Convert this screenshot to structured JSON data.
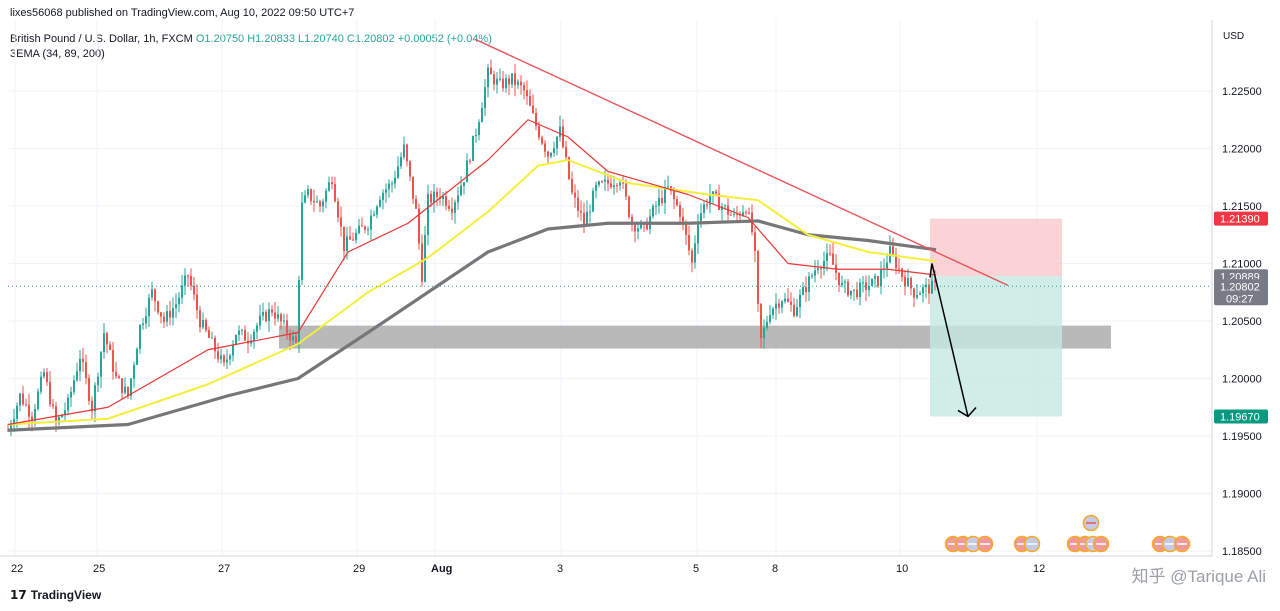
{
  "header": {
    "published": "lixes56068 published on TradingView.com, Aug 10, 2022 09:50 UTC+7"
  },
  "legend": {
    "symbol": "British Pound / U.S. Dollar, 1h, FXCM",
    "ohlc": "O1.20750 H1.20833 L1.20740 C1.20802 +0.00052 (+0.04%)",
    "indicator": "3EMA (34, 89, 200)"
  },
  "footer": {
    "brand": "TradingView",
    "watermark": "知乎 @Tarique Ali"
  },
  "chart_data": {
    "type": "candlestick",
    "title": "British Pound / U.S. Dollar, 1h, FXCM",
    "currency": "USD",
    "ylim": [
      1.1825,
      1.2315
    ],
    "y_ticks": [
      {
        "value": 1.225,
        "label": "1.22500"
      },
      {
        "value": 1.22,
        "label": "1.22000"
      },
      {
        "value": 1.215,
        "label": "1.21500"
      },
      {
        "value": 1.21,
        "label": "1.21000"
      },
      {
        "value": 1.205,
        "label": "1.20500"
      },
      {
        "value": 1.2,
        "label": "1.20000"
      },
      {
        "value": 1.195,
        "label": "1.19500"
      },
      {
        "value": 1.19,
        "label": "1.19000"
      },
      {
        "value": 1.185,
        "label": "1.18500"
      }
    ],
    "x_ticks": [
      "22",
      "25",
      "27",
      "29",
      "Aug",
      "3",
      "5",
      "8",
      "10",
      "12"
    ],
    "price_labels": [
      {
        "value": 1.2139,
        "label": "1.21390",
        "color": "#f23645"
      },
      {
        "value": 1.20889,
        "label": "1.20889",
        "color": "#787b86"
      },
      {
        "value": 1.20802,
        "label": "1.20802",
        "sublabel": "09:27",
        "color": "#787b86"
      },
      {
        "value": 1.1967,
        "label": "1.19670",
        "color": "#089981"
      }
    ],
    "price_path": [
      [
        0,
        1.1955
      ],
      [
        12,
        1.1985
      ],
      [
        24,
        1.1968
      ],
      [
        36,
        1.2005
      ],
      [
        48,
        1.196
      ],
      [
        60,
        1.1978
      ],
      [
        72,
        1.202
      ],
      [
        84,
        1.1975
      ],
      [
        96,
        1.204
      ],
      [
        108,
        1.2
      ],
      [
        120,
        1.1985
      ],
      [
        132,
        1.2045
      ],
      [
        144,
        1.2075
      ],
      [
        156,
        1.205
      ],
      [
        168,
        1.2065
      ],
      [
        180,
        1.209
      ],
      [
        192,
        1.205
      ],
      [
        204,
        1.203
      ],
      [
        216,
        1.201
      ],
      [
        228,
        1.204
      ],
      [
        240,
        1.2035
      ],
      [
        252,
        1.205
      ],
      [
        264,
        1.206
      ],
      [
        276,
        1.2045
      ],
      [
        288,
        1.203
      ],
      [
        294,
        1.215
      ],
      [
        300,
        1.216
      ],
      [
        312,
        1.215
      ],
      [
        324,
        1.2175
      ],
      [
        336,
        1.2115
      ],
      [
        348,
        1.2125
      ],
      [
        360,
        1.2135
      ],
      [
        372,
        1.216
      ],
      [
        384,
        1.217
      ],
      [
        396,
        1.22
      ],
      [
        408,
        1.2145
      ],
      [
        414,
        1.209
      ],
      [
        420,
        1.2155
      ],
      [
        432,
        1.216
      ],
      [
        444,
        1.215
      ],
      [
        456,
        1.2175
      ],
      [
        468,
        1.2215
      ],
      [
        480,
        1.2265
      ],
      [
        492,
        1.2255
      ],
      [
        504,
        1.226
      ],
      [
        516,
        1.225
      ],
      [
        528,
        1.222
      ],
      [
        540,
        1.2195
      ],
      [
        552,
        1.2215
      ],
      [
        564,
        1.216
      ],
      [
        576,
        1.2135
      ],
      [
        588,
        1.2165
      ],
      [
        600,
        1.217
      ],
      [
        612,
        1.2175
      ],
      [
        624,
        1.2135
      ],
      [
        636,
        1.213
      ],
      [
        648,
        1.215
      ],
      [
        660,
        1.2165
      ],
      [
        672,
        1.2145
      ],
      [
        684,
        1.21
      ],
      [
        690,
        1.214
      ],
      [
        702,
        1.216
      ],
      [
        714,
        1.215
      ],
      [
        726,
        1.214
      ],
      [
        738,
        1.215
      ],
      [
        746,
        1.212
      ],
      [
        752,
        1.203
      ],
      [
        762,
        1.206
      ],
      [
        774,
        1.207
      ],
      [
        786,
        1.206
      ],
      [
        798,
        1.208
      ],
      [
        810,
        1.21
      ],
      [
        822,
        1.2105
      ],
      [
        834,
        1.208
      ],
      [
        846,
        1.2075
      ],
      [
        858,
        1.208
      ],
      [
        870,
        1.2085
      ],
      [
        882,
        1.211
      ],
      [
        894,
        1.209
      ],
      [
        906,
        1.2075
      ],
      [
        918,
        1.2078
      ],
      [
        928,
        1.208
      ]
    ],
    "ema34": [
      [
        0,
        1.196
      ],
      [
        100,
        1.1975
      ],
      [
        200,
        1.2025
      ],
      [
        290,
        1.204
      ],
      [
        340,
        1.211
      ],
      [
        400,
        1.2135
      ],
      [
        480,
        1.219
      ],
      [
        520,
        1.2225
      ],
      [
        560,
        1.221
      ],
      [
        600,
        1.218
      ],
      [
        680,
        1.216
      ],
      [
        740,
        1.214
      ],
      [
        780,
        1.21
      ],
      [
        830,
        1.2095
      ],
      [
        880,
        1.2095
      ],
      [
        928,
        1.209
      ]
    ],
    "ema89": [
      [
        0,
        1.196
      ],
      [
        100,
        1.1965
      ],
      [
        200,
        1.1995
      ],
      [
        290,
        1.203
      ],
      [
        360,
        1.2075
      ],
      [
        420,
        1.2105
      ],
      [
        480,
        1.2145
      ],
      [
        530,
        1.2185
      ],
      [
        560,
        1.219
      ],
      [
        620,
        1.217
      ],
      [
        700,
        1.216
      ],
      [
        750,
        1.2155
      ],
      [
        800,
        1.2125
      ],
      [
        860,
        1.211
      ],
      [
        928,
        1.2102
      ]
    ],
    "ema200": [
      [
        0,
        1.1955
      ],
      [
        120,
        1.196
      ],
      [
        220,
        1.1985
      ],
      [
        290,
        1.2
      ],
      [
        360,
        1.204
      ],
      [
        420,
        1.2075
      ],
      [
        480,
        1.211
      ],
      [
        540,
        1.213
      ],
      [
        600,
        1.2135
      ],
      [
        680,
        1.2135
      ],
      [
        750,
        1.2137
      ],
      [
        800,
        1.2125
      ],
      [
        860,
        1.212
      ],
      [
        928,
        1.2112
      ]
    ],
    "trendline": [
      [
        475,
        1.2295
      ],
      [
        1008,
        1.2081
      ]
    ],
    "support_zone": {
      "x_from": 271,
      "x_to": 1103,
      "y_top": 1.2046,
      "y_bottom": 1.2026
    },
    "stop_zone": {
      "x_from": 930,
      "x_to": 1062,
      "y_top": 1.2139,
      "y_bottom": 1.2089
    },
    "target_zone": {
      "x_from": 930,
      "x_to": 1062,
      "y_top": 1.2089,
      "y_bottom": 1.1967
    },
    "forecast_arrow": [
      [
        932,
        1.21
      ],
      [
        968,
        1.1967
      ]
    ],
    "series_colors": {
      "ema34": "#e53935",
      "ema89": "#f5ee3a",
      "ema200": "#77777a",
      "trend": "#e8515a",
      "up": "#26a69a",
      "down": "#ef5350"
    },
    "event_icon_count": 17
  }
}
